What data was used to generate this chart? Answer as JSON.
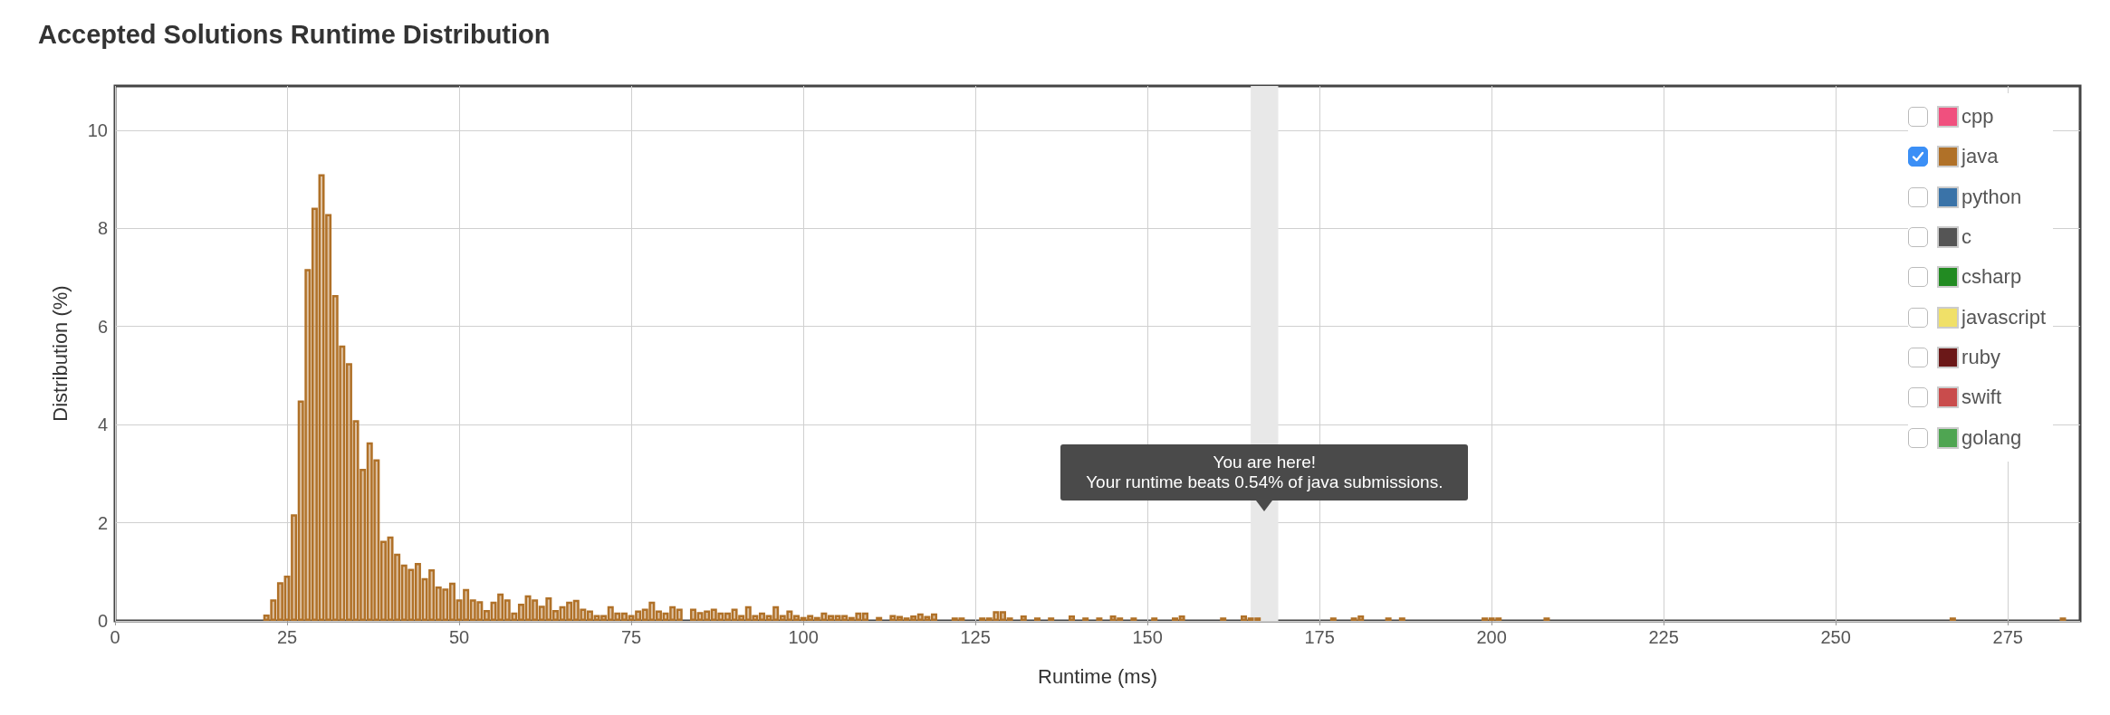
{
  "chart_data": {
    "type": "bar",
    "title": "Accepted Solutions Runtime Distribution",
    "xlabel": "Runtime (ms)",
    "ylabel": "Distribution (%)",
    "xlim": [
      0,
      285.5
    ],
    "xticks": [
      0,
      25,
      50,
      75,
      100,
      125,
      150,
      175,
      200,
      225,
      250,
      275
    ],
    "ylim": [
      0,
      10.9
    ],
    "yticks": [
      0,
      2,
      4,
      6,
      8,
      10
    ],
    "grid": true,
    "legend": "top right",
    "bands": [
      {
        "axis": "x",
        "from": 165,
        "to": 169,
        "color": "#e8e8e8"
      }
    ],
    "annotations": [
      "You are here!\nYour runtime beats 0.54% of java submissions."
    ],
    "series": [
      {
        "name": "cpp",
        "color": "#f0507e"
      },
      {
        "name": "java",
        "color": "#b07128",
        "x": [
          22,
          23,
          24,
          25,
          26,
          27,
          28,
          29,
          30,
          31,
          32,
          33,
          34,
          35,
          36,
          37,
          38,
          39,
          40,
          41,
          42,
          43,
          44,
          45,
          46,
          47,
          48,
          49,
          50,
          51,
          52,
          53,
          54,
          55,
          56,
          57,
          58,
          59,
          60,
          61,
          62,
          63,
          64,
          65,
          66,
          67,
          68,
          69,
          70,
          71,
          72,
          73,
          74,
          75,
          76,
          77,
          78,
          79,
          80,
          81,
          82,
          84,
          85,
          86,
          87,
          88,
          89,
          90,
          91,
          92,
          93,
          94,
          95,
          96,
          97,
          98,
          99,
          100,
          101,
          102,
          103,
          104,
          105,
          106,
          107,
          108,
          109,
          111,
          113,
          114,
          115,
          116,
          117,
          118,
          119,
          122,
          123,
          126,
          127,
          128,
          129,
          130,
          132,
          134,
          136,
          139,
          141,
          143,
          145,
          146,
          148,
          151,
          154,
          155,
          161,
          164,
          165,
          166,
          177,
          180,
          181,
          185,
          187,
          199,
          200,
          201,
          208,
          267,
          283
        ],
        "values": [
          0.13,
          0.44,
          0.79,
          0.92,
          2.17,
          4.49,
          7.17,
          8.42,
          9.1,
          8.29,
          6.64,
          5.61,
          5.25,
          4.09,
          3.1,
          3.64,
          3.29,
          1.63,
          1.72,
          1.37,
          1.15,
          1.06,
          1.18,
          0.87,
          1.05,
          0.7,
          0.66,
          0.78,
          0.44,
          0.65,
          0.44,
          0.4,
          0.22,
          0.39,
          0.56,
          0.44,
          0.17,
          0.35,
          0.52,
          0.44,
          0.31,
          0.48,
          0.22,
          0.3,
          0.39,
          0.43,
          0.25,
          0.21,
          0.12,
          0.12,
          0.3,
          0.17,
          0.17,
          0.12,
          0.21,
          0.25,
          0.39,
          0.21,
          0.17,
          0.3,
          0.25,
          0.25,
          0.18,
          0.21,
          0.25,
          0.17,
          0.17,
          0.25,
          0.12,
          0.3,
          0.12,
          0.17,
          0.12,
          0.3,
          0.12,
          0.21,
          0.12,
          0.08,
          0.12,
          0.08,
          0.17,
          0.12,
          0.12,
          0.12,
          0.08,
          0.17,
          0.17,
          0.08,
          0.12,
          0.1,
          0.07,
          0.11,
          0.15,
          0.1,
          0.15,
          0.07,
          0.07,
          0.07,
          0.07,
          0.2,
          0.2,
          0.07,
          0.11,
          0.07,
          0.07,
          0.11,
          0.07,
          0.07,
          0.11,
          0.07,
          0.07,
          0.07,
          0.07,
          0.11,
          0.07,
          0.11,
          0.07,
          0.07,
          0.07,
          0.07,
          0.11,
          0.07,
          0.07,
          0.07,
          0.07,
          0.07,
          0.07,
          0.07,
          0.07
        ]
      },
      {
        "name": "python",
        "color": "#3a73a8"
      },
      {
        "name": "c",
        "color": "#555555"
      },
      {
        "name": "csharp",
        "color": "#228b22"
      },
      {
        "name": "javascript",
        "color": "#f0e068"
      },
      {
        "name": "ruby",
        "color": "#6b1818"
      },
      {
        "name": "swift",
        "color": "#c94c4c"
      },
      {
        "name": "golang",
        "color": "#4fa552"
      }
    ]
  }
}
